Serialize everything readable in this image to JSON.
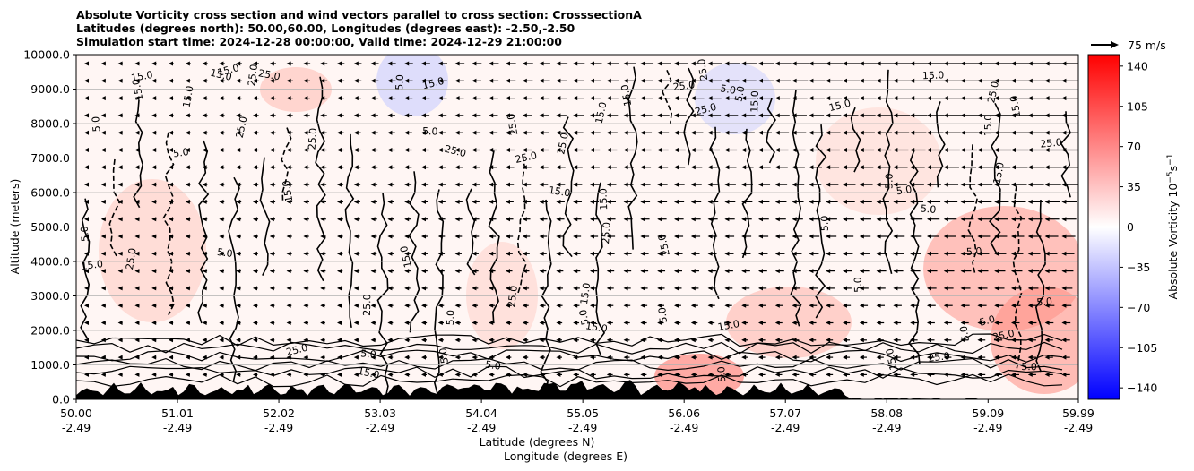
{
  "chart_data": {
    "type": "heatmap",
    "title_lines": [
      "Absolute Vorticity cross section and wind vectors parallel to cross section: CrosssectionA",
      "Latitudes (degrees north): 50.00,60.00, Longitudes (degrees east): -2.50,-2.50",
      "Simulation start time: 2024-12-28 00:00:00, Valid time: 2024-12-29 21:00:00"
    ],
    "ylabel": "Altitude (meters)",
    "xlabel_line1": "Latitude (degrees N)",
    "xlabel_line2": "Longitude (degrees E)",
    "ylim": [
      0,
      10000
    ],
    "yticks": [
      "0.0",
      "1000.0",
      "2000.0",
      "3000.0",
      "4000.0",
      "5000.0",
      "6000.0",
      "7000.0",
      "8000.0",
      "9000.0",
      "10000.0"
    ],
    "xlim": [
      50.0,
      59.99
    ],
    "xticks_lat": [
      "50.00",
      "51.01",
      "52.02",
      "53.03",
      "54.04",
      "55.05",
      "56.06",
      "57.07",
      "58.08",
      "59.09",
      "59.99"
    ],
    "xticks_lon": [
      "-2.49",
      "-2.49",
      "-2.49",
      "-2.49",
      "-2.49",
      "-2.49",
      "-2.49",
      "-2.49",
      "-2.49",
      "-2.49",
      "-2.49"
    ],
    "grid": "horizontal",
    "colorbar": {
      "label": "Absolute Vorticity 10$^{-5}$s$^{-1}$",
      "range": [
        -150,
        150
      ],
      "ticks": [
        "140",
        "105",
        "70",
        "35",
        "0",
        "−35",
        "−70",
        "−105",
        "−140"
      ],
      "tick_values": [
        140,
        105,
        70,
        35,
        0,
        -35,
        -70,
        -105,
        -140
      ],
      "colormap": "bwr"
    },
    "contour_labels": [
      "5.0",
      "15.0",
      "25.0"
    ],
    "quiver_key": {
      "label": "75 m/s",
      "speed": 75
    },
    "wind_vector_direction": "southward (toward lower latitude)",
    "terrain_color": "#000000"
  }
}
